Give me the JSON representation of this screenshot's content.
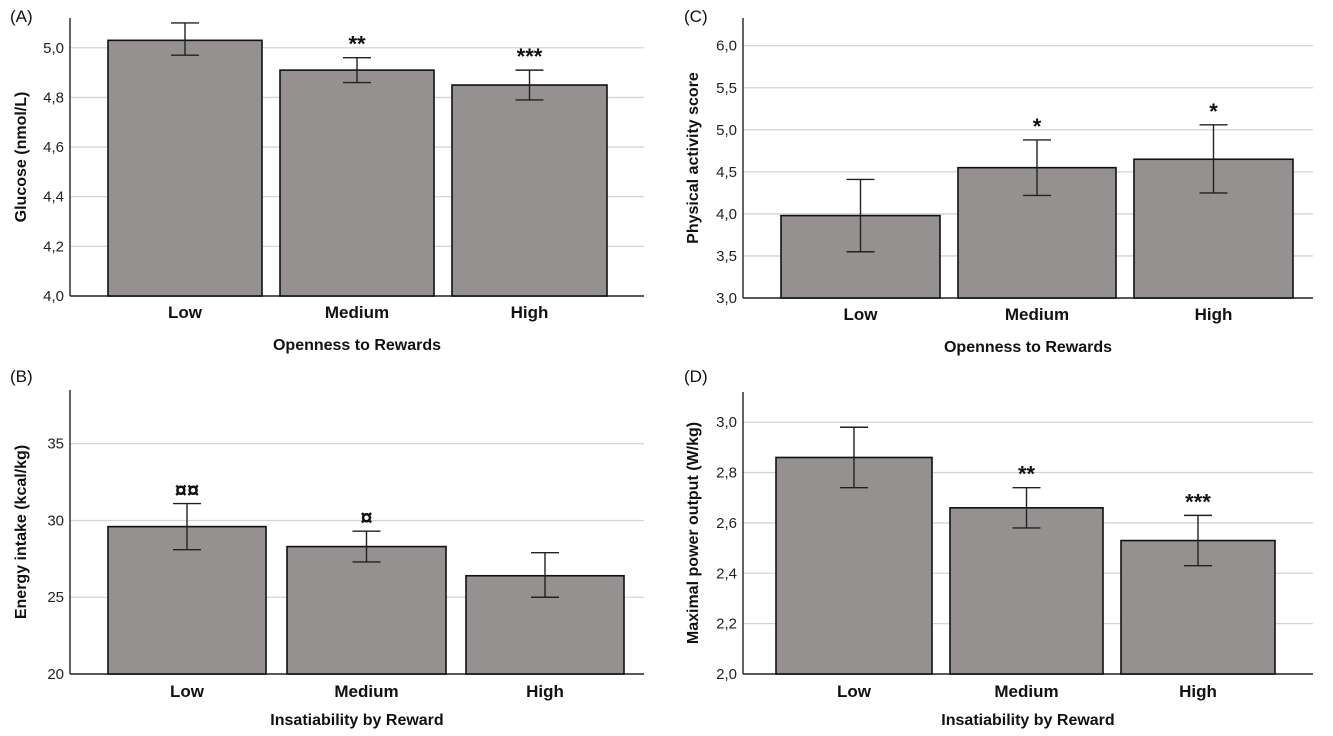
{
  "chart_data": [
    {
      "panel_label": "(A)",
      "type": "bar",
      "categories": [
        "Low",
        "Medium",
        "High"
      ],
      "values": [
        5.03,
        4.91,
        4.85
      ],
      "errors": [
        [
          4.97,
          5.1
        ],
        [
          4.86,
          4.96
        ],
        [
          4.79,
          4.91
        ]
      ],
      "annotations": [
        "",
        "**",
        "***"
      ],
      "xlabel": "Openness to Rewards",
      "ylabel": "Glucose (nmol/L)",
      "ylim": [
        4.0,
        5.12
      ],
      "yticks": [
        "4,0",
        "4,2",
        "4,4",
        "4,6",
        "4,8",
        "5,0"
      ],
      "grid": true
    },
    {
      "panel_label": "(B)",
      "type": "bar",
      "categories": [
        "Low",
        "Medium",
        "High"
      ],
      "values": [
        29.6,
        28.3,
        26.4
      ],
      "errors": [
        [
          28.1,
          31.1
        ],
        [
          27.3,
          29.3
        ],
        [
          25.0,
          27.9
        ]
      ],
      "annotations": [
        "¤¤",
        "¤",
        ""
      ],
      "xlabel": "Insatiability by Reward",
      "ylabel": "Energy intake (kcal/kg)",
      "ylim": [
        20,
        38.5
      ],
      "yticks": [
        "20",
        "25",
        "30",
        "35"
      ],
      "grid": true
    },
    {
      "panel_label": "(C)",
      "type": "bar",
      "categories": [
        "Low",
        "Medium",
        "High"
      ],
      "values": [
        3.98,
        4.55,
        4.65
      ],
      "errors": [
        [
          3.55,
          4.41
        ],
        [
          4.22,
          4.88
        ],
        [
          4.25,
          5.06
        ]
      ],
      "annotations": [
        "",
        "*",
        "*"
      ],
      "xlabel": "Openness to Rewards",
      "ylabel": "Physical activity score",
      "ylim": [
        3.0,
        6.33
      ],
      "yticks": [
        "3,0",
        "3,5",
        "4,0",
        "4,5",
        "5,0",
        "5,5",
        "6,0"
      ],
      "grid": true
    },
    {
      "panel_label": "(D)",
      "type": "bar",
      "categories": [
        "Low",
        "Medium",
        "High"
      ],
      "values": [
        2.86,
        2.66,
        2.53
      ],
      "errors": [
        [
          2.74,
          2.98
        ],
        [
          2.58,
          2.74
        ],
        [
          2.43,
          2.63
        ]
      ],
      "annotations": [
        "",
        "**",
        "***"
      ],
      "xlabel": "Insatiability by Reward",
      "ylabel": "Maximal power output (W/kg)",
      "ylim": [
        2.0,
        3.12
      ],
      "yticks": [
        "2,0",
        "2,2",
        "2,4",
        "2,6",
        "2,8",
        "3,0"
      ],
      "grid": true
    }
  ]
}
